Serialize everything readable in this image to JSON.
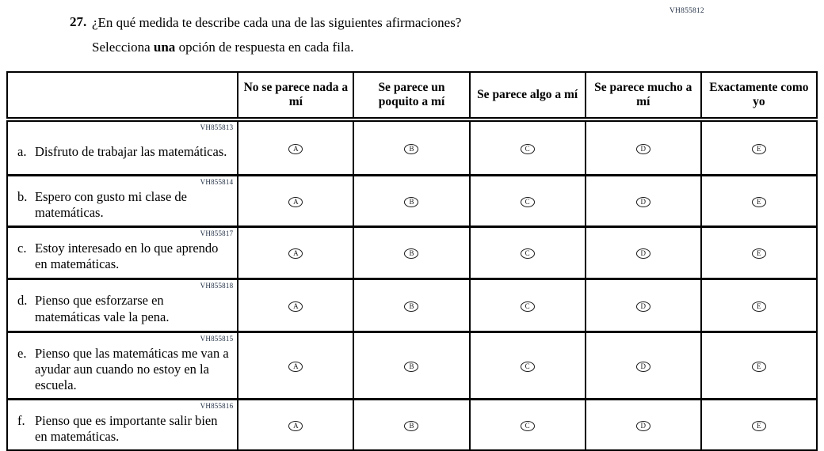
{
  "page": {
    "top_code": "VH855812",
    "question_number": "27.",
    "question_text": "¿En qué medida te describe cada una de las siguientes afirmaciones?",
    "instruction_pre": "Selecciona ",
    "instruction_bold": "una",
    "instruction_post": " opción de respuesta en cada fila."
  },
  "colors": {
    "code_text": "#1f2d42",
    "table_border": "#000000"
  },
  "table": {
    "columns": [
      "No se parece nada a mí",
      "Se parece un poquito a mí",
      "Se parece algo a mí",
      "Se parece mucho a mí",
      "Exactamente como yo"
    ],
    "option_letters": [
      "A",
      "B",
      "C",
      "D",
      "E"
    ],
    "rows": [
      {
        "code": "VH855813",
        "label": "a.",
        "text": "Disfruto de trabajar las matemáticas."
      },
      {
        "code": "VH855814",
        "label": "b.",
        "text": "Espero con gusto mi clase de matemáticas."
      },
      {
        "code": "VH855817",
        "label": "c.",
        "text": "Estoy interesado en lo que aprendo en matemáticas."
      },
      {
        "code": "VH855818",
        "label": "d.",
        "text": "Pienso que esforzarse en matemáticas vale la pena."
      },
      {
        "code": "VH855815",
        "label": "e.",
        "text": "Pienso que las matemáticas me van a ayudar aun cuando no estoy en la escuela."
      },
      {
        "code": "VH855816",
        "label": "f.",
        "text": "Pienso que es importante salir bien en matemáticas."
      }
    ]
  }
}
